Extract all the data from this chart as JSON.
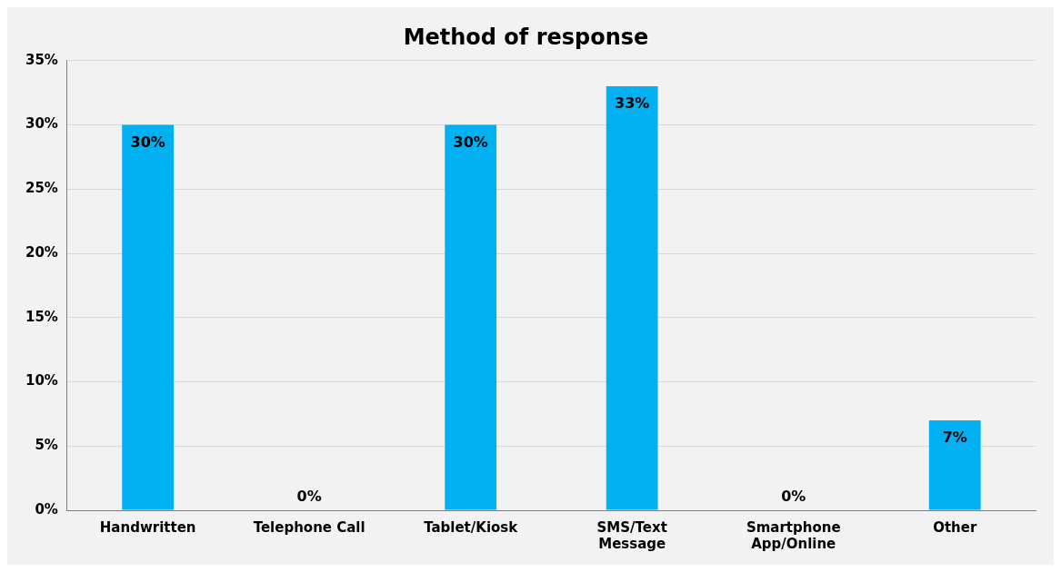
{
  "chart_data": {
    "type": "bar",
    "title": "Method of response",
    "categories": [
      "Handwritten",
      "Telephone Call",
      "Tablet/Kiosk",
      "SMS/Text Message",
      "Smartphone App/Online",
      "Other"
    ],
    "values": [
      30,
      0,
      30,
      33,
      0,
      7
    ],
    "color": "#00b0f0",
    "ylim": [
      0,
      35
    ],
    "yticks": [
      {
        "value": 0,
        "label": "0%"
      },
      {
        "value": 5,
        "label": "5%"
      },
      {
        "value": 10,
        "label": "10%"
      },
      {
        "value": 15,
        "label": "15%"
      },
      {
        "value": 20,
        "label": "20%"
      },
      {
        "value": 25,
        "label": "25%"
      },
      {
        "value": 30,
        "label": "30%"
      },
      {
        "value": 35,
        "label": "35%"
      }
    ],
    "value_labels": [
      "30%",
      "0%",
      "30%",
      "33%",
      "0%",
      "7%"
    ],
    "grid": "y",
    "legend": false
  }
}
